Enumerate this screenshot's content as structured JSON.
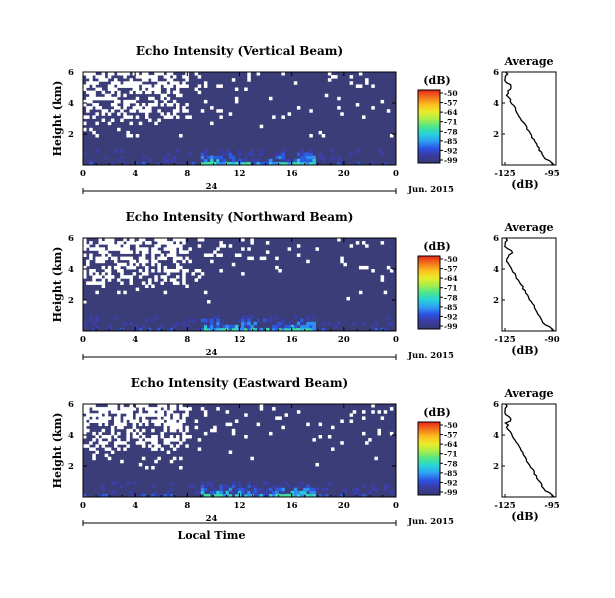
{
  "colorbar": {
    "unit": "(dB)",
    "ticks": [
      "-50",
      "-57",
      "-64",
      "-71",
      "-78",
      "-85",
      "-92",
      "-99"
    ],
    "colors": [
      "#e8251b",
      "#f2741a",
      "#fbbf1f",
      "#e9ec2a",
      "#a8ee4a",
      "#4ee58b",
      "#27d3d9",
      "#2f9ff4",
      "#2c52e3",
      "#3a3a9e",
      "#363977"
    ]
  },
  "common": {
    "height_label": "Height (km)",
    "height_ticks": [
      "6",
      "4",
      "2"
    ],
    "time_ticks": [
      "0",
      "4",
      "8",
      "12",
      "16",
      "20",
      "0"
    ],
    "date_day": "24",
    "date_label": "Jun. 2015",
    "xlabel": "Local Time",
    "avg_title": "Average",
    "avg_xlabel": "(dB)",
    "avg_y_ticks": [
      "6",
      "4",
      "2"
    ],
    "background_color": "#3a3d78",
    "nodata_color": "#ffffff"
  },
  "chart_data": [
    {
      "type": "heatmap",
      "title": "Echo Intensity (Vertical Beam)",
      "ylabel": "Height (km)",
      "xlabel": "",
      "x_range_hours": [
        0,
        24
      ],
      "y_range_km": [
        0,
        6
      ],
      "seed": 11,
      "avg": {
        "title": "Average",
        "xlabel": "(dB)",
        "xticks": [
          "-125",
          "-95"
        ],
        "xlim": [
          -125,
          -95
        ],
        "ylim": [
          0,
          6
        ]
      }
    },
    {
      "type": "heatmap",
      "title": "Echo Intensity (Northward Beam)",
      "ylabel": "Height (km)",
      "xlabel": "",
      "x_range_hours": [
        0,
        24
      ],
      "y_range_km": [
        0,
        6
      ],
      "seed": 29,
      "avg": {
        "title": "Average",
        "xlabel": "(dB)",
        "xticks": [
          "-125",
          "-90"
        ],
        "xlim": [
          -125,
          -90
        ],
        "ylim": [
          0,
          6
        ]
      }
    },
    {
      "type": "heatmap",
      "title": "Echo Intensity (Eastward Beam)",
      "ylabel": "Height (km)",
      "xlabel": "Local Time",
      "x_range_hours": [
        0,
        24
      ],
      "y_range_km": [
        0,
        6
      ],
      "seed": 47,
      "avg": {
        "title": "Average",
        "xlabel": "(dB)",
        "xticks": [
          "-125",
          "-95"
        ],
        "xlim": [
          -125,
          -95
        ],
        "ylim": [
          0,
          6
        ]
      }
    }
  ]
}
